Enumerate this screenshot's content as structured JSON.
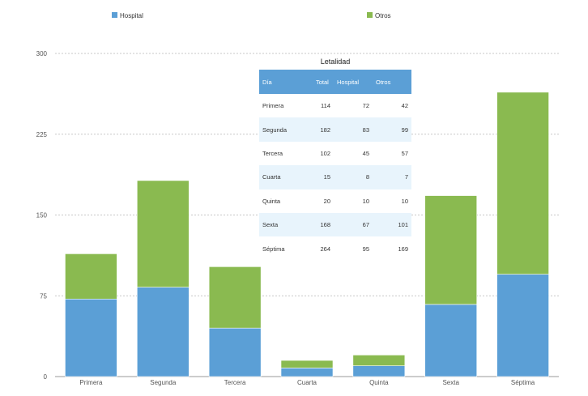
{
  "chart_data": {
    "type": "bar",
    "stacked": true,
    "categories": [
      "Primera",
      "Segunda",
      "Tercera",
      "Cuarta",
      "Quinta",
      "Sexta",
      "Séptima"
    ],
    "series": [
      {
        "name": "Hospital",
        "color": "#5b9fd6",
        "values": [
          72,
          83,
          45,
          8,
          10,
          67,
          95
        ]
      },
      {
        "name": "Otros",
        "color": "#8aba50",
        "values": [
          42,
          99,
          57,
          7,
          10,
          101,
          169
        ]
      }
    ],
    "ylim": [
      0,
      300
    ],
    "yticks": [
      0,
      75,
      150,
      225,
      300
    ],
    "grid": true,
    "legend": "top",
    "xlabel": "",
    "ylabel": ""
  },
  "table": {
    "title": "Letalidad",
    "headers": [
      "Día",
      "Total",
      "Hospital",
      "Otros"
    ],
    "rows": [
      [
        "Primera",
        "114",
        "72",
        "42"
      ],
      [
        "Segunda",
        "182",
        "83",
        "99"
      ],
      [
        "Tercera",
        "102",
        "45",
        "57"
      ],
      [
        "Cuarta",
        "15",
        "8",
        "7"
      ],
      [
        "Quinta",
        "20",
        "10",
        "10"
      ],
      [
        "Sexta",
        "168",
        "67",
        "101"
      ],
      [
        "Séptima",
        "264",
        "95",
        "169"
      ]
    ]
  }
}
